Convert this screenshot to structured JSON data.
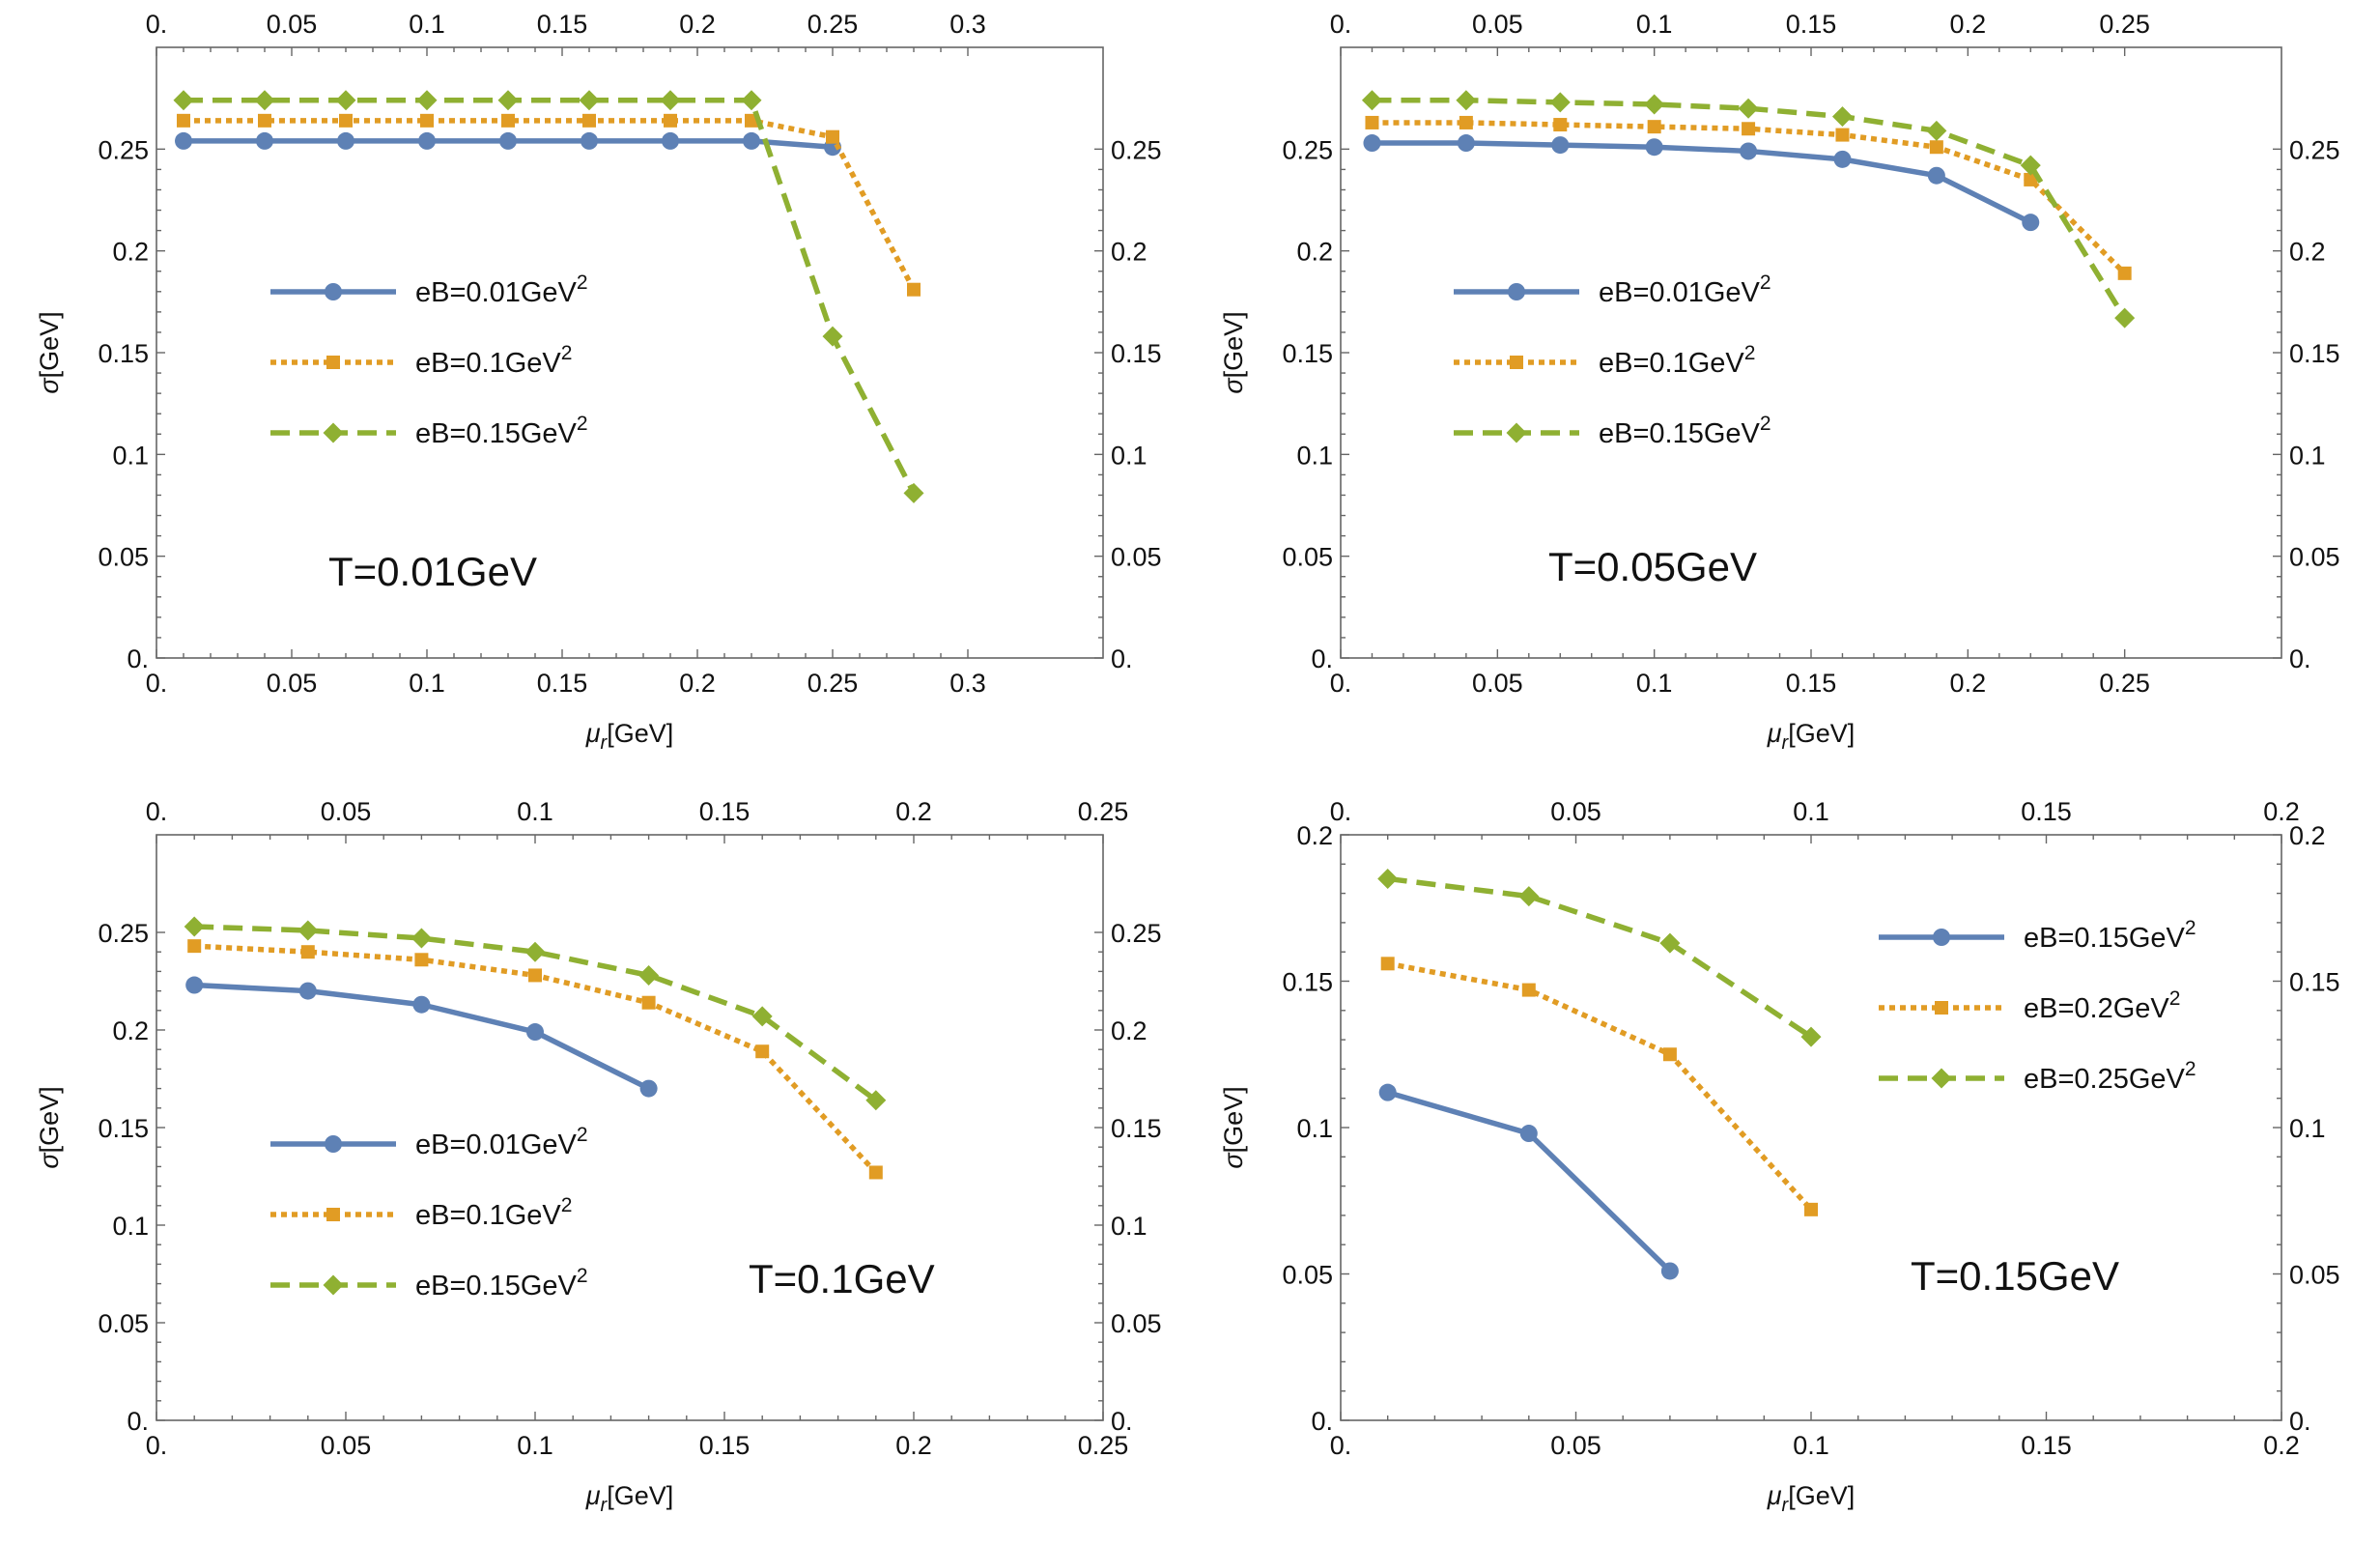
{
  "colors": {
    "series1": "#5E81B5",
    "series2": "#E19C24",
    "series3": "#8FB032",
    "frame": "#666666",
    "text": "#111111"
  },
  "chart_data": [
    {
      "type": "line",
      "annotation": "T=0.01GeV",
      "ylabel_symbol": "σ",
      "ylabel_unit": "[GeV]",
      "xlabel_symbol": "μ",
      "xlabel_sub": "r",
      "xlabel_unit": "[GeV]",
      "xlim": [
        0,
        0.35
      ],
      "ylim": [
        0,
        0.3
      ],
      "xticks": [
        0,
        0.05,
        0.1,
        0.15,
        0.2,
        0.25,
        0.3
      ],
      "xtick_labels": [
        "0.",
        "0.05",
        "0.1",
        "0.15",
        "0.2",
        "0.25",
        "0.3"
      ],
      "yticks": [
        0,
        0.05,
        0.1,
        0.15,
        0.2,
        0.25
      ],
      "ytick_labels": [
        "0.",
        "0.05",
        "0.1",
        "0.15",
        "0.2",
        "0.25"
      ],
      "legend_position": "middle-left",
      "series": [
        {
          "name": "eB=0.01GeV",
          "name_sup": "2",
          "style": "solid",
          "marker": "circle",
          "x": [
            0.01,
            0.04,
            0.07,
            0.1,
            0.13,
            0.16,
            0.19,
            0.22,
            0.25
          ],
          "values": [
            0.254,
            0.254,
            0.254,
            0.254,
            0.254,
            0.254,
            0.254,
            0.254,
            0.251
          ]
        },
        {
          "name": "eB=0.1GeV",
          "name_sup": "2",
          "style": "dotted",
          "marker": "square",
          "x": [
            0.01,
            0.04,
            0.07,
            0.1,
            0.13,
            0.16,
            0.19,
            0.22,
            0.25,
            0.28
          ],
          "values": [
            0.264,
            0.264,
            0.264,
            0.264,
            0.264,
            0.264,
            0.264,
            0.264,
            0.256,
            0.181
          ]
        },
        {
          "name": "eB=0.15GeV",
          "name_sup": "2",
          "style": "dashed",
          "marker": "diamond",
          "x": [
            0.01,
            0.04,
            0.07,
            0.1,
            0.13,
            0.16,
            0.19,
            0.22,
            0.25,
            0.28
          ],
          "values": [
            0.274,
            0.274,
            0.274,
            0.274,
            0.274,
            0.274,
            0.274,
            0.274,
            0.158,
            0.081
          ]
        }
      ]
    },
    {
      "type": "line",
      "annotation": "T=0.05GeV",
      "ylabel_symbol": "σ",
      "ylabel_unit": "[GeV]",
      "xlabel_symbol": "μ",
      "xlabel_sub": "r",
      "xlabel_unit": "[GeV]",
      "xlim": [
        0,
        0.3
      ],
      "ylim": [
        0,
        0.3
      ],
      "xticks": [
        0,
        0.05,
        0.1,
        0.15,
        0.2,
        0.25
      ],
      "xtick_labels": [
        "0.",
        "0.05",
        "0.1",
        "0.15",
        "0.2",
        "0.25"
      ],
      "yticks": [
        0,
        0.05,
        0.1,
        0.15,
        0.2,
        0.25
      ],
      "ytick_labels": [
        "0.",
        "0.05",
        "0.1",
        "0.15",
        "0.2",
        "0.25"
      ],
      "legend_position": "middle-left",
      "series": [
        {
          "name": "eB=0.01GeV",
          "name_sup": "2",
          "style": "solid",
          "marker": "circle",
          "x": [
            0.01,
            0.04,
            0.07,
            0.1,
            0.13,
            0.16,
            0.19,
            0.22
          ],
          "values": [
            0.253,
            0.253,
            0.252,
            0.251,
            0.249,
            0.245,
            0.237,
            0.214
          ]
        },
        {
          "name": "eB=0.1GeV",
          "name_sup": "2",
          "style": "dotted",
          "marker": "square",
          "x": [
            0.01,
            0.04,
            0.07,
            0.1,
            0.13,
            0.16,
            0.19,
            0.22,
            0.25
          ],
          "values": [
            0.263,
            0.263,
            0.262,
            0.261,
            0.26,
            0.257,
            0.251,
            0.235,
            0.189
          ]
        },
        {
          "name": "eB=0.15GeV",
          "name_sup": "2",
          "style": "dashed",
          "marker": "diamond",
          "x": [
            0.01,
            0.04,
            0.07,
            0.1,
            0.13,
            0.16,
            0.19,
            0.22,
            0.25
          ],
          "values": [
            0.274,
            0.274,
            0.273,
            0.272,
            0.27,
            0.266,
            0.259,
            0.242,
            0.167
          ]
        }
      ]
    },
    {
      "type": "line",
      "annotation": "T=0.1GeV",
      "ylabel_symbol": "σ",
      "ylabel_unit": "[GeV]",
      "xlabel_symbol": "μ",
      "xlabel_sub": "r",
      "xlabel_unit": "[GeV]",
      "xlim": [
        0,
        0.25
      ],
      "ylim": [
        0,
        0.3
      ],
      "xticks": [
        0,
        0.05,
        0.1,
        0.15,
        0.2,
        0.25
      ],
      "xtick_labels": [
        "0.",
        "0.05",
        "0.1",
        "0.15",
        "0.2",
        "0.25"
      ],
      "yticks": [
        0,
        0.05,
        0.1,
        0.15,
        0.2,
        0.25
      ],
      "ytick_labels": [
        "0.",
        "0.05",
        "0.1",
        "0.15",
        "0.2",
        "0.25"
      ],
      "legend_position": "bottom-left",
      "series": [
        {
          "name": "eB=0.01GeV",
          "name_sup": "2",
          "style": "solid",
          "marker": "circle",
          "x": [
            0.01,
            0.04,
            0.07,
            0.1,
            0.13
          ],
          "values": [
            0.223,
            0.22,
            0.213,
            0.199,
            0.17
          ]
        },
        {
          "name": "eB=0.1GeV",
          "name_sup": "2",
          "style": "dotted",
          "marker": "square",
          "x": [
            0.01,
            0.04,
            0.07,
            0.1,
            0.13,
            0.16,
            0.19
          ],
          "values": [
            0.243,
            0.24,
            0.236,
            0.228,
            0.214,
            0.189,
            0.127
          ]
        },
        {
          "name": "eB=0.15GeV",
          "name_sup": "2",
          "style": "dashed",
          "marker": "diamond",
          "x": [
            0.01,
            0.04,
            0.07,
            0.1,
            0.13,
            0.16,
            0.19
          ],
          "values": [
            0.253,
            0.251,
            0.247,
            0.24,
            0.228,
            0.207,
            0.164
          ]
        }
      ]
    },
    {
      "type": "line",
      "annotation": "T=0.15GeV",
      "ylabel_symbol": "σ",
      "ylabel_unit": "[GeV]",
      "xlabel_symbol": "μ",
      "xlabel_sub": "r",
      "xlabel_unit": "[GeV]",
      "xlim": [
        0,
        0.2
      ],
      "ylim": [
        0,
        0.2
      ],
      "xticks": [
        0,
        0.05,
        0.1,
        0.15,
        0.2
      ],
      "xtick_labels": [
        "0.",
        "0.05",
        "0.1",
        "0.15",
        "0.2"
      ],
      "yticks": [
        0,
        0.05,
        0.1,
        0.15,
        0.2
      ],
      "ytick_labels": [
        "0.",
        "0.05",
        "0.1",
        "0.15",
        "0.2"
      ],
      "legend_position": "top-right",
      "series": [
        {
          "name": "eB=0.15GeV",
          "name_sup": "2",
          "style": "solid",
          "marker": "circle",
          "x": [
            0.01,
            0.04,
            0.07
          ],
          "values": [
            0.112,
            0.098,
            0.051
          ]
        },
        {
          "name": "eB=0.2GeV",
          "name_sup": "2",
          "style": "dotted",
          "marker": "square",
          "x": [
            0.01,
            0.04,
            0.07,
            0.1
          ],
          "values": [
            0.156,
            0.147,
            0.125,
            0.072
          ]
        },
        {
          "name": "eB=0.25GeV",
          "name_sup": "2",
          "style": "dashed",
          "marker": "diamond",
          "x": [
            0.01,
            0.04,
            0.07,
            0.1
          ],
          "values": [
            0.185,
            0.179,
            0.163,
            0.131
          ]
        }
      ]
    }
  ]
}
